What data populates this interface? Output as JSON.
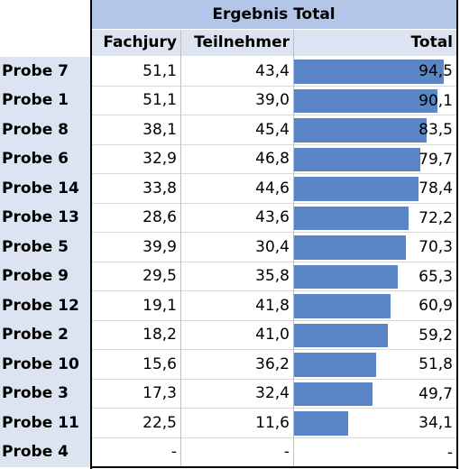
{
  "table": {
    "header_title": "Ergebnis Total",
    "columns": [
      "Fachjury",
      "Teilnehmer",
      "Total"
    ],
    "rows": [
      {
        "label": "Probe 7",
        "fachjury": "51,1",
        "teilnehmer": "43,4",
        "total": "94,5",
        "total_value": 94.5
      },
      {
        "label": "Probe 1",
        "fachjury": "51,1",
        "teilnehmer": "39,0",
        "total": "90,1",
        "total_value": 90.1
      },
      {
        "label": "Probe 8",
        "fachjury": "38,1",
        "teilnehmer": "45,4",
        "total": "83,5",
        "total_value": 83.5
      },
      {
        "label": "Probe 6",
        "fachjury": "32,9",
        "teilnehmer": "46,8",
        "total": "79,7",
        "total_value": 79.7
      },
      {
        "label": "Probe 14",
        "fachjury": "33,8",
        "teilnehmer": "44,6",
        "total": "78,4",
        "total_value": 78.4
      },
      {
        "label": "Probe 13",
        "fachjury": "28,6",
        "teilnehmer": "43,6",
        "total": "72,2",
        "total_value": 72.2
      },
      {
        "label": "Probe 5",
        "fachjury": "39,9",
        "teilnehmer": "30,4",
        "total": "70,3",
        "total_value": 70.3
      },
      {
        "label": "Probe 9",
        "fachjury": "29,5",
        "teilnehmer": "35,8",
        "total": "65,3",
        "total_value": 65.3
      },
      {
        "label": "Probe 12",
        "fachjury": "19,1",
        "teilnehmer": "41,8",
        "total": "60,9",
        "total_value": 60.9
      },
      {
        "label": "Probe 2",
        "fachjury": "18,2",
        "teilnehmer": "41,0",
        "total": "59,2",
        "total_value": 59.2
      },
      {
        "label": "Probe 10",
        "fachjury": "15,6",
        "teilnehmer": "36,2",
        "total": "51,8",
        "total_value": 51.8
      },
      {
        "label": "Probe 3",
        "fachjury": "17,3",
        "teilnehmer": "32,4",
        "total": "49,7",
        "total_value": 49.7
      },
      {
        "label": "Probe 11",
        "fachjury": "22,5",
        "teilnehmer": "11,6",
        "total": "34,1",
        "total_value": 34.1
      },
      {
        "label": "Probe 4",
        "fachjury": "-",
        "teilnehmer": "-",
        "total": "-",
        "total_value": 0
      }
    ]
  },
  "colors": {
    "header_bg": "#b4c6e7",
    "subheader_bg": "#dce3f1",
    "row_label_bg": "#dce3f1",
    "data_bar": "#5b86c5"
  }
}
